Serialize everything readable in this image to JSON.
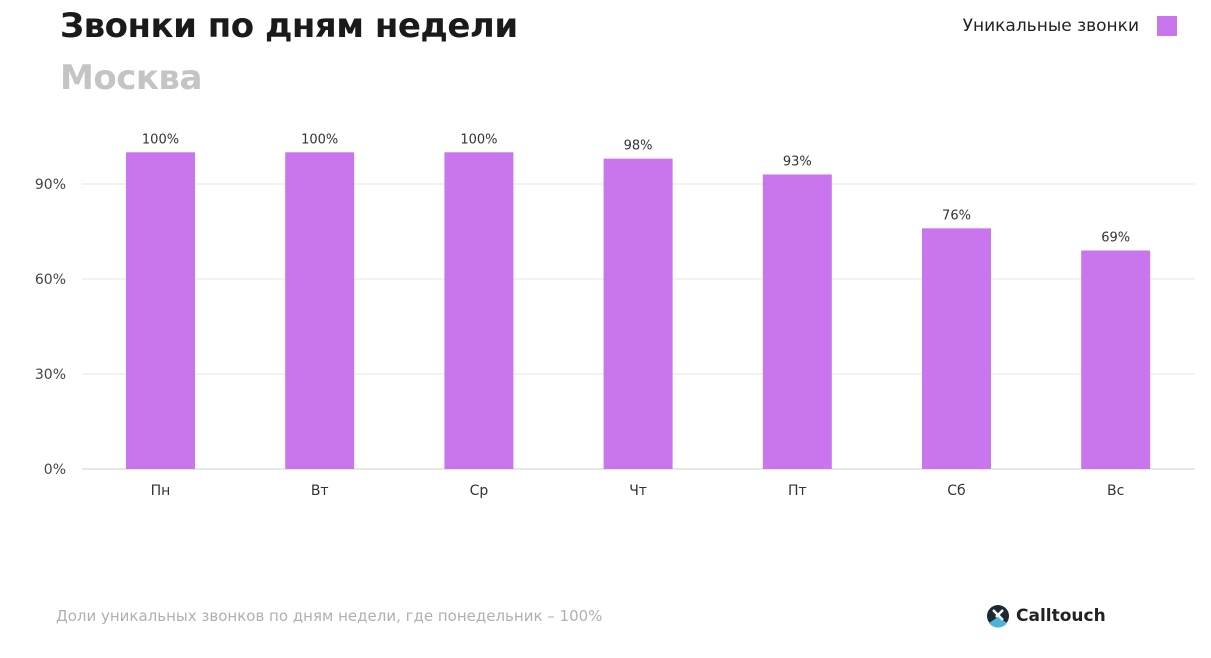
{
  "chart_data": {
    "type": "bar",
    "title": "Звонки по дням недели",
    "subtitle": "Москва",
    "categories": [
      "Пн",
      "Вт",
      "Ср",
      "Чт",
      "Пт",
      "Сб",
      "Вс"
    ],
    "series": [
      {
        "name": "Уникальные звонки",
        "values": [
          100,
          100,
          100,
          98,
          93,
          76,
          69
        ],
        "color": "#c975ee"
      }
    ],
    "data_labels": [
      "100%",
      "100%",
      "100%",
      "98%",
      "93%",
      "76%",
      "69%"
    ],
    "yticks": [
      0,
      30,
      60,
      90
    ],
    "ytick_labels": [
      "0%",
      "30%",
      "60%",
      "90%"
    ],
    "ylim": [
      0,
      100
    ],
    "grid": true,
    "legend_position": "top-right",
    "xlabel": "",
    "ylabel": ""
  },
  "footer": {
    "note": "Доли уникальных звонков по дням недели, где понедельник – 100%",
    "brand": "Calltouch"
  }
}
